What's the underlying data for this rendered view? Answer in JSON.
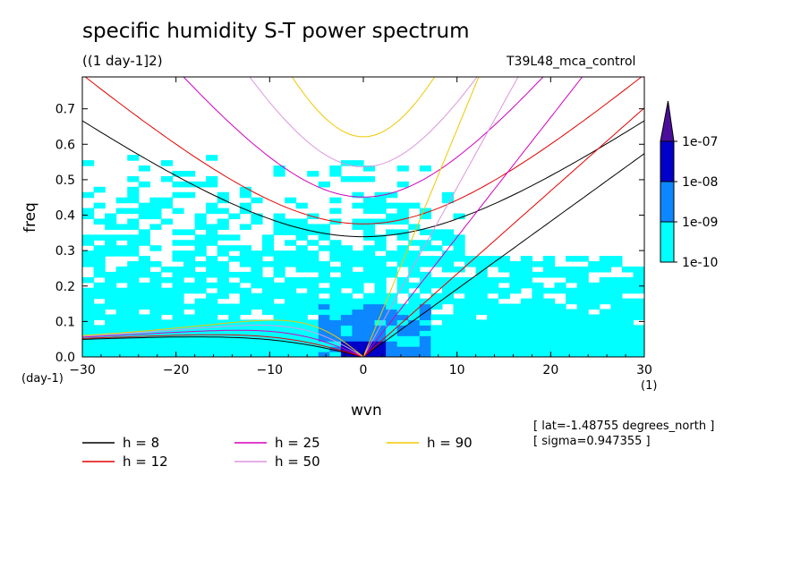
{
  "chart_data": {
    "type": "heatmap",
    "title": "specific humidity S-T power spectrum",
    "subtitle": "((1 day-1]2)",
    "run_label": "T39L48_mca_control",
    "xlabel": "wvn",
    "ylabel": "freq",
    "x_unit_label": "(1)",
    "y_unit_label": "(day-1)",
    "xlim": [
      -30,
      30
    ],
    "ylim": [
      0,
      0.79
    ],
    "x_ticks": [
      -30,
      -20,
      -10,
      0,
      10,
      20,
      30
    ],
    "x_tick_labels": [
      "−30",
      "−20",
      "−10",
      "0",
      "10",
      "20",
      "30"
    ],
    "y_ticks": [
      0,
      0.1,
      0.2,
      0.3,
      0.4,
      0.5,
      0.6,
      0.7
    ],
    "y_tick_labels": [
      "0.0",
      "0.1",
      "0.2",
      "0.3",
      "0.4",
      "0.5",
      "0.6",
      "0.7"
    ],
    "colorbar": {
      "levels": [
        "1e-10",
        "1e-09",
        "1e-08",
        "1e-07"
      ],
      "colors": [
        "#00ffff",
        "#0c87ff",
        "#0000c8",
        "#4b0e9b"
      ]
    },
    "series": [
      {
        "name": "h =  8",
        "color": "#000000",
        "equivalent_depth": 8
      },
      {
        "name": "h = 12",
        "color": "#e60000",
        "equivalent_depth": 12
      },
      {
        "name": "h = 25",
        "color": "#d200be",
        "equivalent_depth": 25
      },
      {
        "name": "h = 50",
        "color": "#dc96dc",
        "equivalent_depth": 50
      },
      {
        "name": "h = 90",
        "color": "#f0c800",
        "equivalent_depth": 90
      }
    ],
    "annotations": [
      "[ lat=-1.48755 degrees_north ]",
      "[ sigma=0.947355 ]"
    ]
  }
}
